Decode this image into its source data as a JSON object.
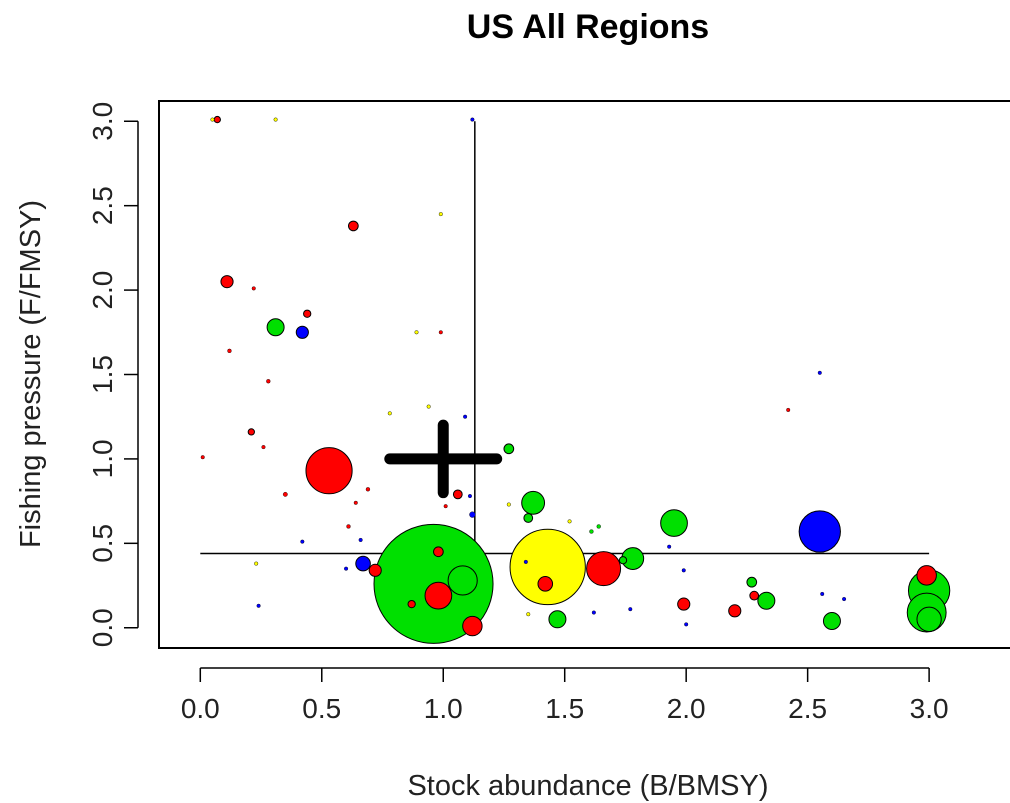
{
  "chart_data": {
    "type": "scatter",
    "title": "US All Regions",
    "xlabel": "Stock abundance (B/BMSY)",
    "ylabel": "Fishing pressure (F/FMSY)",
    "xlim": [
      -0.17,
      3.37
    ],
    "ylim": [
      -0.12,
      3.12
    ],
    "x_ticks": [
      "0.0",
      "0.5",
      "1.0",
      "1.5",
      "2.0",
      "2.5",
      "3.0"
    ],
    "y_ticks": [
      "0.0",
      "0.5",
      "1.0",
      "1.5",
      "2.0",
      "2.5",
      "3.0"
    ],
    "grid": false,
    "reference_lines": [
      {
        "name": "median-b-line",
        "x": [
          1.13,
          1.13
        ],
        "y": [
          0,
          3.0
        ]
      },
      {
        "name": "median-f-line",
        "x": [
          0.0,
          3.0
        ],
        "y": [
          0.44,
          0.44
        ]
      }
    ],
    "center_marker": {
      "x": 1.0,
      "y": 1.0,
      "h_span": [
        0.78,
        1.22
      ],
      "v_span": [
        0.8,
        1.2
      ],
      "color": "#000000"
    },
    "colors": {
      "green": "#00e000",
      "red": "#ff0000",
      "blue": "#0000ff",
      "yellow": "#ffff00",
      "outline": "#000000"
    },
    "points": [
      {
        "x": 0.96,
        "y": 0.26,
        "r": 0.245,
        "color": "green"
      },
      {
        "x": 1.43,
        "y": 0.36,
        "r": 0.155,
        "color": "yellow"
      },
      {
        "x": 0.53,
        "y": 0.93,
        "r": 0.095,
        "color": "red"
      },
      {
        "x": 2.55,
        "y": 0.57,
        "r": 0.085,
        "color": "blue"
      },
      {
        "x": 1.66,
        "y": 0.35,
        "r": 0.07,
        "color": "red"
      },
      {
        "x": 3.0,
        "y": 0.22,
        "r": 0.085,
        "color": "green"
      },
      {
        "x": 2.99,
        "y": 0.09,
        "r": 0.08,
        "color": "green"
      },
      {
        "x": 3.0,
        "y": 0.05,
        "r": 0.05,
        "color": "green"
      },
      {
        "x": 1.95,
        "y": 0.62,
        "r": 0.055,
        "color": "green"
      },
      {
        "x": 1.08,
        "y": 0.28,
        "r": 0.06,
        "color": "green"
      },
      {
        "x": 0.98,
        "y": 0.19,
        "r": 0.055,
        "color": "red"
      },
      {
        "x": 2.99,
        "y": 0.31,
        "r": 0.04,
        "color": "red"
      },
      {
        "x": 1.37,
        "y": 0.74,
        "r": 0.047,
        "color": "green"
      },
      {
        "x": 1.78,
        "y": 0.41,
        "r": 0.045,
        "color": "green"
      },
      {
        "x": 1.12,
        "y": 0.01,
        "r": 0.04,
        "color": "red"
      },
      {
        "x": 0.31,
        "y": 1.78,
        "r": 0.035,
        "color": "green"
      },
      {
        "x": 1.47,
        "y": 0.05,
        "r": 0.035,
        "color": "green"
      },
      {
        "x": 2.6,
        "y": 0.04,
        "r": 0.035,
        "color": "green"
      },
      {
        "x": 2.33,
        "y": 0.16,
        "r": 0.035,
        "color": "green"
      },
      {
        "x": 1.42,
        "y": 0.26,
        "r": 0.03,
        "color": "red"
      },
      {
        "x": 0.42,
        "y": 1.75,
        "r": 0.025,
        "color": "blue"
      },
      {
        "x": 0.67,
        "y": 0.38,
        "r": 0.03,
        "color": "blue"
      },
      {
        "x": 0.11,
        "y": 2.05,
        "r": 0.025,
        "color": "red"
      },
      {
        "x": 2.2,
        "y": 0.1,
        "r": 0.025,
        "color": "red"
      },
      {
        "x": 1.99,
        "y": 0.14,
        "r": 0.025,
        "color": "red"
      },
      {
        "x": 0.72,
        "y": 0.34,
        "r": 0.025,
        "color": "red"
      },
      {
        "x": 0.98,
        "y": 0.45,
        "r": 0.02,
        "color": "red"
      },
      {
        "x": 1.06,
        "y": 0.79,
        "r": 0.018,
        "color": "red"
      },
      {
        "x": 0.63,
        "y": 2.38,
        "r": 0.02,
        "color": "red"
      },
      {
        "x": 1.27,
        "y": 1.06,
        "r": 0.02,
        "color": "green"
      },
      {
        "x": 2.27,
        "y": 0.27,
        "r": 0.02,
        "color": "green"
      },
      {
        "x": 1.35,
        "y": 0.65,
        "r": 0.018,
        "color": "green"
      },
      {
        "x": 2.28,
        "y": 0.19,
        "r": 0.018,
        "color": "red"
      },
      {
        "x": 0.87,
        "y": 0.14,
        "r": 0.015,
        "color": "red"
      },
      {
        "x": 0.44,
        "y": 1.86,
        "r": 0.015,
        "color": "red"
      },
      {
        "x": 1.74,
        "y": 0.4,
        "r": 0.015,
        "color": "green"
      },
      {
        "x": 1.12,
        "y": 0.67,
        "r": 0.012,
        "color": "blue"
      },
      {
        "x": 0.07,
        "y": 3.01,
        "r": 0.013,
        "color": "red"
      },
      {
        "x": 0.21,
        "y": 1.16,
        "r": 0.013,
        "color": "red"
      },
      {
        "x": 0.12,
        "y": 1.64,
        "r": 0.008,
        "color": "red"
      },
      {
        "x": 0.35,
        "y": 0.79,
        "r": 0.009,
        "color": "red"
      },
      {
        "x": 0.69,
        "y": 0.82,
        "r": 0.008,
        "color": "red"
      },
      {
        "x": 0.61,
        "y": 0.6,
        "r": 0.008,
        "color": "red"
      },
      {
        "x": 0.28,
        "y": 1.46,
        "r": 0.008,
        "color": "red"
      },
      {
        "x": 0.99,
        "y": 1.75,
        "r": 0.007,
        "color": "red"
      },
      {
        "x": 2.42,
        "y": 1.29,
        "r": 0.007,
        "color": "red"
      },
      {
        "x": 1.01,
        "y": 0.72,
        "r": 0.007,
        "color": "red"
      },
      {
        "x": 0.01,
        "y": 1.01,
        "r": 0.006,
        "color": "red"
      },
      {
        "x": 0.22,
        "y": 2.01,
        "r": 0.006,
        "color": "red"
      },
      {
        "x": 0.26,
        "y": 1.07,
        "r": 0.006,
        "color": "red"
      },
      {
        "x": 0.64,
        "y": 0.74,
        "r": 0.006,
        "color": "red"
      },
      {
        "x": 2.55,
        "y": 1.51,
        "r": 0.007,
        "color": "blue"
      },
      {
        "x": 1.09,
        "y": 1.25,
        "r": 0.007,
        "color": "blue"
      },
      {
        "x": 1.12,
        "y": 3.01,
        "r": 0.006,
        "color": "blue"
      },
      {
        "x": 0.42,
        "y": 0.51,
        "r": 0.007,
        "color": "blue"
      },
      {
        "x": 0.24,
        "y": 0.13,
        "r": 0.007,
        "color": "blue"
      },
      {
        "x": 0.6,
        "y": 0.35,
        "r": 0.007,
        "color": "blue"
      },
      {
        "x": 1.62,
        "y": 0.09,
        "r": 0.007,
        "color": "blue"
      },
      {
        "x": 1.77,
        "y": 0.11,
        "r": 0.006,
        "color": "blue"
      },
      {
        "x": 1.99,
        "y": 0.34,
        "r": 0.007,
        "color": "blue"
      },
      {
        "x": 2.0,
        "y": 0.02,
        "r": 0.006,
        "color": "blue"
      },
      {
        "x": 2.56,
        "y": 0.2,
        "r": 0.006,
        "color": "blue"
      },
      {
        "x": 2.65,
        "y": 0.17,
        "r": 0.006,
        "color": "blue"
      },
      {
        "x": 1.11,
        "y": 0.78,
        "r": 0.006,
        "color": "blue"
      },
      {
        "x": 1.34,
        "y": 0.39,
        "r": 0.006,
        "color": "blue"
      },
      {
        "x": 1.93,
        "y": 0.48,
        "r": 0.006,
        "color": "blue"
      },
      {
        "x": 0.66,
        "y": 0.52,
        "r": 0.006,
        "color": "blue"
      },
      {
        "x": 1.61,
        "y": 0.57,
        "r": 0.008,
        "color": "green"
      },
      {
        "x": 1.64,
        "y": 0.6,
        "r": 0.008,
        "color": "green"
      },
      {
        "x": 1.52,
        "y": 0.63,
        "r": 0.006,
        "color": "yellow"
      },
      {
        "x": 0.05,
        "y": 3.01,
        "r": 0.006,
        "color": "yellow"
      },
      {
        "x": 0.31,
        "y": 3.01,
        "r": 0.006,
        "color": "yellow"
      },
      {
        "x": 0.99,
        "y": 2.45,
        "r": 0.006,
        "color": "yellow"
      },
      {
        "x": 0.89,
        "y": 1.75,
        "r": 0.006,
        "color": "yellow"
      },
      {
        "x": 0.78,
        "y": 1.27,
        "r": 0.006,
        "color": "yellow"
      },
      {
        "x": 0.94,
        "y": 1.31,
        "r": 0.006,
        "color": "yellow"
      },
      {
        "x": 0.23,
        "y": 0.38,
        "r": 0.006,
        "color": "yellow"
      },
      {
        "x": 1.27,
        "y": 0.73,
        "r": 0.006,
        "color": "yellow"
      },
      {
        "x": 1.35,
        "y": 0.08,
        "r": 0.006,
        "color": "yellow"
      }
    ]
  }
}
